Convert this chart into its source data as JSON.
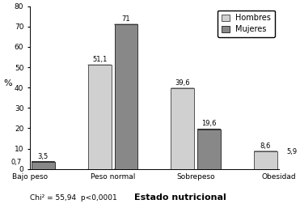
{
  "categories": [
    "Bajo peso",
    "Peso normal",
    "Sobrepeso",
    "Obesidad"
  ],
  "hombres": [
    0.7,
    51.1,
    39.6,
    8.6
  ],
  "mujeres": [
    3.5,
    71.0,
    19.6,
    5.9
  ],
  "hombres_labels": [
    "0,7",
    "51,1",
    "39,6",
    "8,6"
  ],
  "mujeres_labels": [
    "3,5",
    "71",
    "19,6",
    "5,9"
  ],
  "hombres_label": "Hombres",
  "mujeres_label": "Mujeres",
  "ylabel": "%",
  "xlabel": "Estado nutricional",
  "ylim": [
    0,
    80
  ],
  "yticks": [
    0,
    10,
    20,
    30,
    40,
    50,
    60,
    70,
    80
  ],
  "footnote": "Chi² = 55,94  p<0,0001",
  "bar_width": 0.28,
  "hombres_color": "#d0d0d0",
  "mujeres_color": "#888888",
  "hombres_edge": "#555555",
  "mujeres_edge": "#333333",
  "label_fontsize": 6.0,
  "tick_fontsize": 6.5,
  "xlabel_fontsize": 8.0,
  "ylabel_fontsize": 8,
  "footnote_fontsize": 6.5,
  "legend_fontsize": 7.0,
  "ellipse_ratio": 0.22
}
